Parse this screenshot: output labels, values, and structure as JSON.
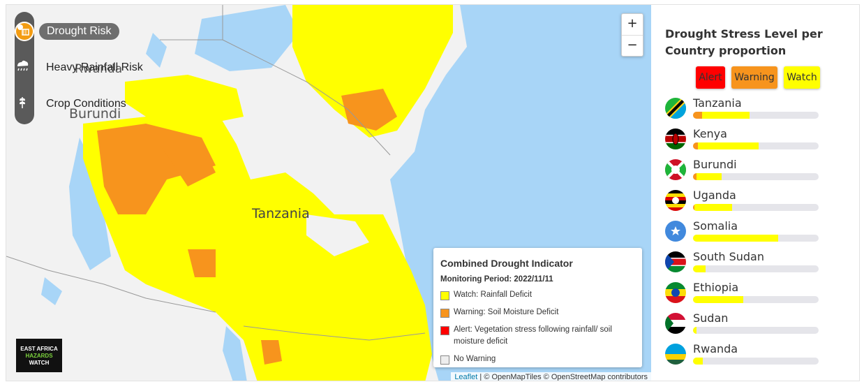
{
  "layers": [
    {
      "label": "Drought Risk",
      "icon": "drought-icon",
      "active": true
    },
    {
      "label": "Heavy Rainfall Risk",
      "icon": "cloud-rain-icon",
      "active": false
    },
    {
      "label": "Crop Conditions",
      "icon": "wheat-icon",
      "active": false
    }
  ],
  "map": {
    "place_labels": [
      "Rwanda",
      "Burundi",
      "Tanzania"
    ],
    "zoom_in": "+",
    "zoom_out": "−"
  },
  "legend": {
    "title": "Combined Drought Indicator",
    "period": "Monitoring Period: 2022/11/11",
    "items": [
      {
        "label": "Watch: Rainfall Deficit",
        "color": "#ffff00"
      },
      {
        "label": "Warning: Soil Moisture Deficit",
        "color": "#f7941d"
      },
      {
        "label": "Alert: Vegetation stress following rainfall/ soil moisture deficit",
        "color": "#ff0000"
      },
      {
        "label": "No Warning",
        "color": "#eeeeee"
      }
    ]
  },
  "logo": {
    "line1": "EAST AFRICA",
    "line2": "HAZARDS",
    "line3": "WATCH"
  },
  "attribution": {
    "leaflet": "Leaflet",
    "rest": " | © OpenMapTiles © OpenStreetMap contributors"
  },
  "panel": {
    "title": "Drought Stress Level per Country proportion",
    "keys": [
      {
        "label": "Alert",
        "color": "#ff0000"
      },
      {
        "label": "Warning",
        "color": "#f7941d"
      },
      {
        "label": "Watch",
        "color": "#ffff00"
      }
    ],
    "countries": [
      {
        "name": "Tanzania",
        "alert": 0,
        "warning": 0.07,
        "watch": 0.38
      },
      {
        "name": "Kenya",
        "alert": 0,
        "warning": 0.04,
        "watch": 0.48
      },
      {
        "name": "Burundi",
        "alert": 0,
        "warning": 0.03,
        "watch": 0.2
      },
      {
        "name": "Uganda",
        "alert": 0,
        "warning": 0.01,
        "watch": 0.3
      },
      {
        "name": "Somalia",
        "alert": 0,
        "warning": 0,
        "watch": 0.68
      },
      {
        "name": "South Sudan",
        "alert": 0,
        "warning": 0,
        "watch": 0.1
      },
      {
        "name": "Ethiopia",
        "alert": 0,
        "warning": 0,
        "watch": 0.4
      },
      {
        "name": "Sudan",
        "alert": 0,
        "warning": 0,
        "watch": 0.03
      },
      {
        "name": "Rwanda",
        "alert": 0,
        "warning": 0,
        "watch": 0.08
      }
    ]
  }
}
